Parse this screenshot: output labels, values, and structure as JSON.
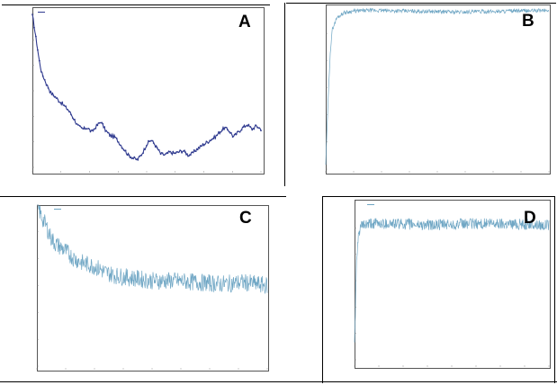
{
  "panels": [
    {
      "letter": "A",
      "chart_data": {
        "type": "line",
        "color": "#2f3a8f",
        "marker": "dot",
        "x_range": [
          0,
          100
        ],
        "y_range": [
          0,
          100
        ],
        "keypoints": [
          [
            0,
            100
          ],
          [
            1,
            90
          ],
          [
            2,
            80
          ],
          [
            3,
            70
          ],
          [
            4,
            62
          ],
          [
            6,
            55
          ],
          [
            8,
            49
          ],
          [
            10,
            46
          ],
          [
            12,
            43
          ],
          [
            14,
            40
          ],
          [
            16,
            37
          ],
          [
            18,
            32
          ],
          [
            20,
            27
          ],
          [
            22,
            25
          ],
          [
            24,
            26
          ],
          [
            26,
            23
          ],
          [
            28,
            27
          ],
          [
            30,
            30
          ],
          [
            32,
            24
          ],
          [
            34,
            21
          ],
          [
            36,
            20
          ],
          [
            38,
            16
          ],
          [
            40,
            12
          ],
          [
            42,
            8
          ],
          [
            44,
            6
          ],
          [
            46,
            5
          ],
          [
            48,
            9
          ],
          [
            50,
            15
          ],
          [
            52,
            18
          ],
          [
            54,
            14
          ],
          [
            56,
            9
          ],
          [
            58,
            8
          ],
          [
            60,
            10
          ],
          [
            62,
            9
          ],
          [
            64,
            10
          ],
          [
            66,
            11
          ],
          [
            68,
            8
          ],
          [
            70,
            9
          ],
          [
            72,
            12
          ],
          [
            74,
            14
          ],
          [
            76,
            16
          ],
          [
            78,
            18
          ],
          [
            80,
            20
          ],
          [
            82,
            23
          ],
          [
            84,
            26
          ],
          [
            86,
            24
          ],
          [
            88,
            20
          ],
          [
            90,
            23
          ],
          [
            92,
            26
          ],
          [
            94,
            28
          ],
          [
            96,
            25
          ],
          [
            98,
            27
          ],
          [
            100,
            25
          ]
        ]
      }
    },
    {
      "letter": "B",
      "chart_data": {
        "type": "line",
        "color": "#6fa6c4",
        "x_range": [
          0,
          100
        ],
        "y_range": [
          0,
          100
        ],
        "keypoints": [
          [
            0,
            3
          ],
          [
            1,
            40
          ],
          [
            2,
            72
          ],
          [
            3,
            86
          ],
          [
            5,
            93
          ],
          [
            8,
            96
          ],
          [
            12,
            97
          ],
          [
            20,
            97.5
          ],
          [
            40,
            97
          ],
          [
            60,
            96.5
          ],
          [
            80,
            97
          ],
          [
            100,
            97.5
          ]
        ],
        "noise": 1.2
      }
    },
    {
      "letter": "C",
      "chart_data": {
        "type": "line",
        "color": "#6fa6c4",
        "x_range": [
          0,
          100
        ],
        "y_range": [
          0,
          100
        ],
        "keypoints": [
          [
            0,
            100
          ],
          [
            2,
            93
          ],
          [
            4,
            87
          ],
          [
            6,
            80
          ],
          [
            8,
            76
          ],
          [
            12,
            72
          ],
          [
            16,
            67
          ],
          [
            20,
            64
          ],
          [
            25,
            62
          ],
          [
            30,
            58
          ],
          [
            35,
            56
          ],
          [
            40,
            55
          ],
          [
            50,
            53
          ],
          [
            60,
            53
          ],
          [
            70,
            52
          ],
          [
            80,
            51
          ],
          [
            90,
            52
          ],
          [
            100,
            50
          ]
        ],
        "noise": 5.5
      }
    },
    {
      "letter": "D",
      "chart_data": {
        "type": "line",
        "color": "#6fa6c4",
        "x_range": [
          0,
          100
        ],
        "y_range": [
          0,
          100
        ],
        "keypoints": [
          [
            0,
            10
          ],
          [
            1,
            60
          ],
          [
            2,
            78
          ],
          [
            3,
            84
          ],
          [
            5,
            85
          ],
          [
            10,
            86
          ],
          [
            20,
            86
          ],
          [
            40,
            85
          ],
          [
            60,
            86
          ],
          [
            80,
            86
          ],
          [
            100,
            85
          ]
        ],
        "noise": 3.5
      }
    }
  ]
}
